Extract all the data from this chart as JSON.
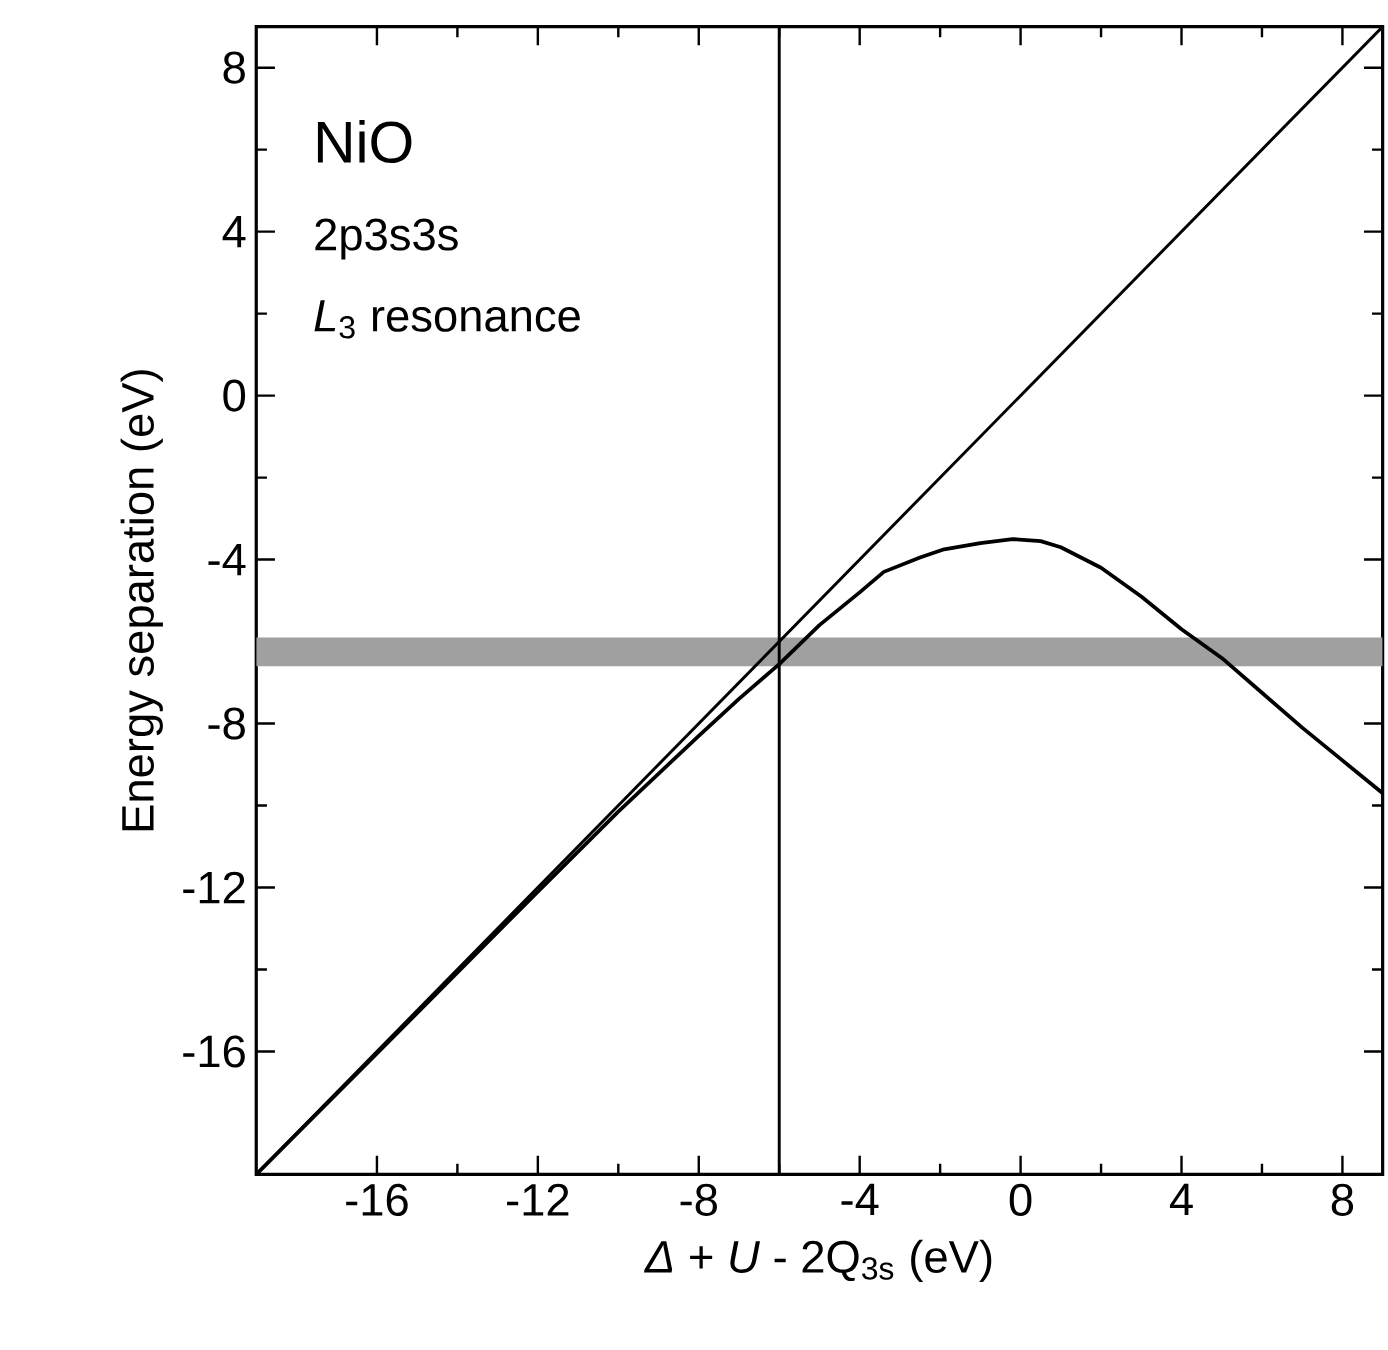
{
  "chart_data": {
    "type": "line",
    "xlabel": "*Δ* + *U* - 2Q$_{3s}$ (eV)",
    "ylabel": "Energy separation (eV)",
    "annotations": [
      "NiO",
      "2p3s3s",
      "*L*$_{3}$ resonance"
    ],
    "series": [
      {
        "color": "#000000",
        "x": [
          -19,
          9
        ],
        "values": [
          -19,
          9
        ]
      },
      {
        "color": "#000000",
        "x": [
          -19,
          -16,
          -12,
          -10,
          -8,
          -7,
          -6,
          -5,
          -4,
          -3.4,
          -2.5,
          -1.9,
          -1,
          -0.2,
          0.5,
          1,
          2,
          3,
          4,
          4.5,
          5,
          6,
          7,
          8,
          9
        ],
        "values": [
          -19,
          -16.05,
          -12.1,
          -10.15,
          -8.3,
          -7.4,
          -6.55,
          -5.6,
          -4.8,
          -4.3,
          -3.95,
          -3.75,
          -3.6,
          -3.5,
          -3.55,
          -3.7,
          -4.2,
          -4.9,
          -5.7,
          -6.05,
          -6.4,
          -7.25,
          -8.1,
          -8.9,
          -9.7
        ]
      }
    ],
    "ref_lines": [
      {
        "axis": "x",
        "value": -6,
        "color": "#000000"
      }
    ],
    "bands": [
      {
        "axis": "y",
        "from": -6.6,
        "to": -5.9,
        "color": "#a0a0a0"
      }
    ],
    "xlim": [
      -19,
      9
    ],
    "ylim": [
      -19,
      9
    ],
    "xticks": [
      -16,
      -12,
      -8,
      -4,
      0,
      4,
      8
    ],
    "yticks": [
      -16,
      -12,
      -8,
      -4,
      0,
      4,
      8
    ],
    "grid": false,
    "marker": "none",
    "line_style": "solid"
  }
}
